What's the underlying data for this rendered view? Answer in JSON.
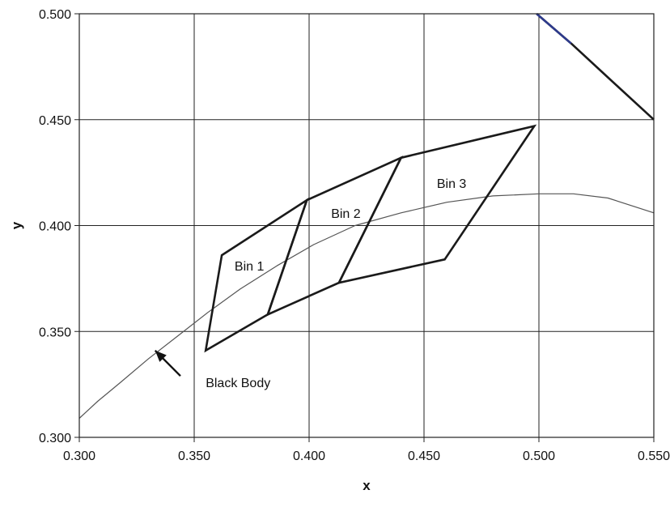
{
  "chart_data": {
    "type": "line",
    "xlabel": "x",
    "ylabel": "y",
    "xlim": [
      0.3,
      0.55
    ],
    "ylim": [
      0.3,
      0.5
    ],
    "x_ticks": [
      0.3,
      0.35,
      0.4,
      0.45,
      0.5,
      0.55
    ],
    "y_ticks": [
      0.3,
      0.35,
      0.4,
      0.45,
      0.5
    ],
    "x_tick_labels": [
      "0.300",
      "0.350",
      "0.400",
      "0.450",
      "0.500",
      "0.550"
    ],
    "y_tick_labels": [
      "0.300",
      "0.350",
      "0.400",
      "0.450",
      "0.500"
    ],
    "grid": true,
    "legend": "none",
    "series": [
      {
        "id": "black-body-curve",
        "color": "#555555",
        "points": [
          [
            0.3,
            0.309
          ],
          [
            0.308,
            0.317
          ],
          [
            0.318,
            0.326
          ],
          [
            0.33,
            0.337
          ],
          [
            0.343,
            0.348
          ],
          [
            0.356,
            0.359
          ],
          [
            0.37,
            0.37
          ],
          [
            0.386,
            0.381
          ],
          [
            0.402,
            0.391
          ],
          [
            0.42,
            0.4
          ],
          [
            0.44,
            0.406
          ],
          [
            0.46,
            0.411
          ],
          [
            0.48,
            0.414
          ],
          [
            0.5,
            0.415
          ],
          [
            0.515,
            0.415
          ],
          [
            0.53,
            0.413
          ],
          [
            0.55,
            0.406
          ]
        ]
      },
      {
        "id": "diagonal-line",
        "color": "#1a1a1a",
        "accent_color": "#2d3a8c",
        "points": [
          [
            0.499,
            0.5
          ],
          [
            0.514,
            0.486
          ],
          [
            0.53,
            0.47
          ],
          [
            0.55,
            0.45
          ]
        ]
      }
    ],
    "bins": [
      {
        "name": "Bin 1",
        "polygon": [
          [
            0.362,
            0.386
          ],
          [
            0.399,
            0.412
          ],
          [
            0.382,
            0.358
          ],
          [
            0.355,
            0.341
          ]
        ],
        "label_pos": [
          0.374,
          0.381
        ]
      },
      {
        "name": "Bin 2",
        "polygon": [
          [
            0.399,
            0.412
          ],
          [
            0.44,
            0.432
          ],
          [
            0.413,
            0.373
          ],
          [
            0.382,
            0.358
          ]
        ],
        "label_pos": [
          0.416,
          0.406
        ]
      },
      {
        "name": "Bin 3",
        "polygon": [
          [
            0.44,
            0.432
          ],
          [
            0.498,
            0.447
          ],
          [
            0.459,
            0.384
          ],
          [
            0.413,
            0.373
          ]
        ],
        "label_pos": [
          0.462,
          0.42
        ]
      }
    ],
    "bin_outline_color": "#1a1a1a",
    "annotations": [
      {
        "text": "Black Body",
        "text_pos": [
          0.355,
          0.326
        ],
        "arrow_from": [
          0.344,
          0.329
        ],
        "arrow_to": [
          0.333,
          0.341
        ]
      }
    ]
  }
}
